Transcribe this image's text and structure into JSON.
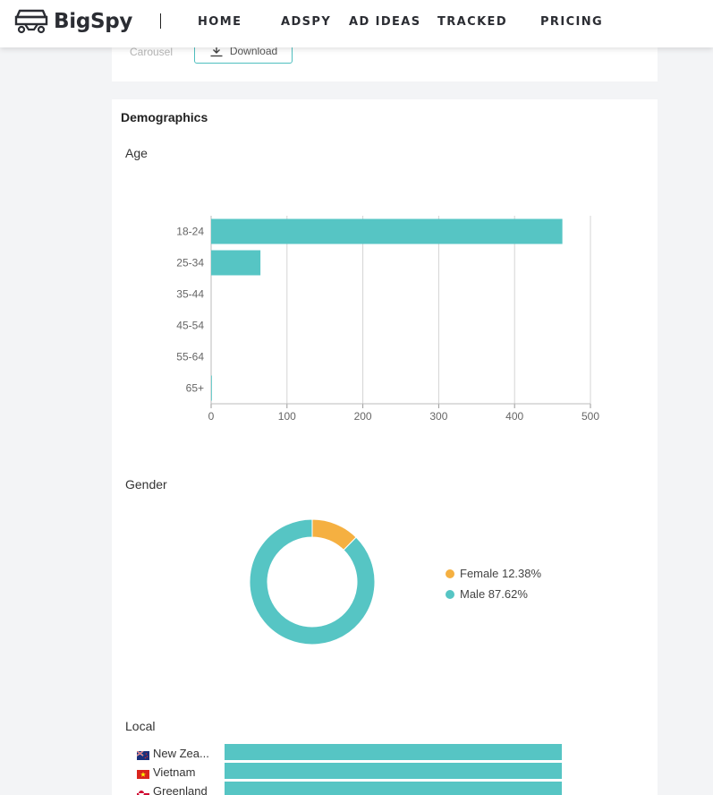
{
  "header": {
    "logo_text": "BigSpy",
    "nav": [
      {
        "label": "HOME"
      },
      {
        "label": "ADSPY"
      },
      {
        "label": "AD IDEAS"
      },
      {
        "label": "TRACKED"
      },
      {
        "label": "PRICING"
      }
    ]
  },
  "top_card": {
    "label": "Carousel",
    "download_label": "Download",
    "download_icon": "download-icon"
  },
  "demographics": {
    "title": "Demographics",
    "age_title": "Age",
    "gender_title": "Gender",
    "local_title": "Local"
  },
  "chart_data": [
    {
      "type": "bar",
      "orientation": "horizontal",
      "title": "Age",
      "categories": [
        "18-24",
        "25-34",
        "35-44",
        "45-54",
        "55-64",
        "65+"
      ],
      "values": [
        463,
        65,
        0,
        0,
        0,
        1
      ],
      "xlim": [
        0,
        500
      ],
      "xticks": [
        0,
        100,
        200,
        300,
        400,
        500
      ],
      "grid": true,
      "color": "#56c5c4"
    },
    {
      "type": "pie",
      "title": "Gender",
      "donut": true,
      "series": [
        {
          "name": "Female",
          "value": 12.38,
          "label": "Female 12.38%",
          "color": "#f5b041"
        },
        {
          "name": "Male",
          "value": 87.62,
          "label": "Male 87.62%",
          "color": "#56c5c4"
        }
      ],
      "legend": "right"
    },
    {
      "type": "bar",
      "orientation": "horizontal",
      "title": "Local",
      "categories": [
        "New Zea...",
        "Vietnam",
        "Greenland"
      ],
      "values": [
        100,
        100,
        100
      ],
      "color": "#56c5c4"
    }
  ]
}
